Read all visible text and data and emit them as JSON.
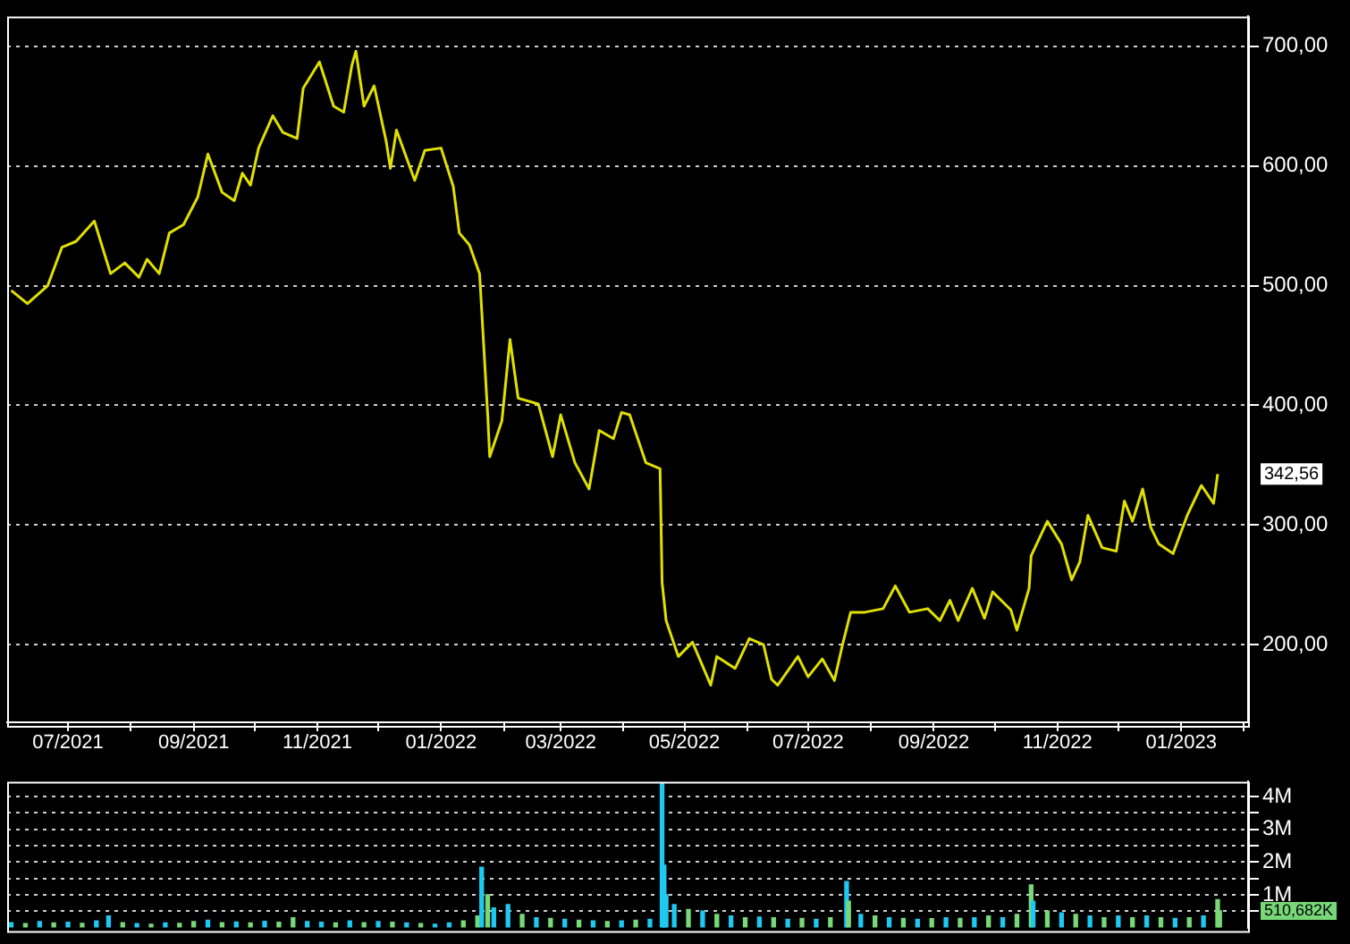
{
  "chart_data": [
    {
      "type": "line",
      "x": [
        "2021-06-03",
        "2021-06-11",
        "2021-06-21",
        "2021-06-28",
        "2021-07-05",
        "2021-07-14",
        "2021-07-22",
        "2021-07-29",
        "2021-08-05",
        "2021-08-09",
        "2021-08-15",
        "2021-08-20",
        "2021-08-27",
        "2021-09-03",
        "2021-09-08",
        "2021-09-15",
        "2021-09-21",
        "2021-09-25",
        "2021-09-29",
        "2021-10-03",
        "2021-10-10",
        "2021-10-15",
        "2021-10-22",
        "2021-10-25",
        "2021-11-02",
        "2021-11-09",
        "2021-11-14",
        "2021-11-18",
        "2021-11-20",
        "2021-11-24",
        "2021-11-29",
        "2021-12-05",
        "2021-12-07",
        "2021-12-10",
        "2021-12-19",
        "2021-12-24",
        "2022-01-01",
        "2022-01-07",
        "2022-01-10",
        "2022-01-15",
        "2022-01-20",
        "2022-01-24",
        "2022-01-25",
        "2022-01-31",
        "2022-02-04",
        "2022-02-08",
        "2022-02-18",
        "2022-02-25",
        "2022-03-01",
        "2022-03-08",
        "2022-03-15",
        "2022-03-20",
        "2022-03-27",
        "2022-03-31",
        "2022-04-04",
        "2022-04-12",
        "2022-04-19",
        "2022-04-20",
        "2022-04-22",
        "2022-04-28",
        "2022-05-05",
        "2022-05-14",
        "2022-05-17",
        "2022-05-26",
        "2022-06-02",
        "2022-06-09",
        "2022-06-13",
        "2022-06-16",
        "2022-06-26",
        "2022-07-01",
        "2022-07-08",
        "2022-07-14",
        "2022-07-18",
        "2022-07-22",
        "2022-07-29",
        "2022-08-07",
        "2022-08-13",
        "2022-08-20",
        "2022-08-29",
        "2022-09-04",
        "2022-09-09",
        "2022-09-13",
        "2022-09-20",
        "2022-09-26",
        "2022-09-30",
        "2022-10-09",
        "2022-10-12",
        "2022-10-18",
        "2022-10-19",
        "2022-10-27",
        "2022-11-03",
        "2022-11-08",
        "2022-11-12",
        "2022-11-16",
        "2022-11-23",
        "2022-11-30",
        "2022-12-04",
        "2022-12-08",
        "2022-12-13",
        "2022-12-17",
        "2022-12-21",
        "2022-12-28",
        "2023-01-04",
        "2023-01-11",
        "2023-01-17",
        "2023-01-19"
      ],
      "series": [
        {
          "color": "#e0e000",
          "values": [
            496,
            485,
            500,
            532,
            537,
            554,
            510,
            519,
            507,
            522,
            510,
            544,
            551,
            574,
            610,
            578,
            571,
            594,
            584,
            615,
            642,
            628,
            623,
            665,
            687,
            650,
            645,
            684,
            696,
            650,
            667,
            620,
            598,
            630,
            588,
            613,
            615,
            583,
            544,
            534,
            510,
            392,
            357,
            387,
            455,
            406,
            401,
            357,
            392,
            352,
            330,
            379,
            372,
            394,
            392,
            352,
            347,
            252,
            220,
            190,
            202,
            166,
            190,
            180,
            205,
            200,
            171,
            166,
            190,
            173,
            188,
            170,
            200,
            227,
            227,
            230,
            249,
            227,
            230,
            220,
            237,
            220,
            247,
            222,
            244,
            229,
            212,
            247,
            274,
            303,
            284,
            254,
            269,
            308,
            281,
            278,
            320,
            303,
            330,
            298,
            284,
            276,
            308,
            333,
            318,
            342.56
          ]
        }
      ],
      "xlim": [
        "2021-06-01",
        "2023-02-03"
      ],
      "xticks": [
        {
          "value": "2021-07-01",
          "label": "07/2021"
        },
        {
          "value": "2021-08-01",
          "label": null
        },
        {
          "value": "2021-09-01",
          "label": "09/2021"
        },
        {
          "value": "2021-10-01",
          "label": null
        },
        {
          "value": "2021-11-01",
          "label": "11/2021"
        },
        {
          "value": "2021-12-01",
          "label": null
        },
        {
          "value": "2022-01-01",
          "label": "01/2022"
        },
        {
          "value": "2022-02-01",
          "label": null
        },
        {
          "value": "2022-03-01",
          "label": "03/2022"
        },
        {
          "value": "2022-04-01",
          "label": null
        },
        {
          "value": "2022-05-01",
          "label": "05/2022"
        },
        {
          "value": "2022-06-01",
          "label": null
        },
        {
          "value": "2022-07-01",
          "label": "07/2022"
        },
        {
          "value": "2022-08-01",
          "label": null
        },
        {
          "value": "2022-09-01",
          "label": "09/2022"
        },
        {
          "value": "2022-10-01",
          "label": null
        },
        {
          "value": "2022-11-01",
          "label": "11/2022"
        },
        {
          "value": "2022-12-01",
          "label": null
        },
        {
          "value": "2023-01-01",
          "label": "01/2023"
        },
        {
          "value": "2023-02-01",
          "label": null
        }
      ],
      "ylim": [
        135,
        725
      ],
      "yticks": [
        {
          "value": 200,
          "label": "200,00"
        },
        {
          "value": 300,
          "label": "300,00"
        },
        {
          "value": 400,
          "label": "400,00"
        },
        {
          "value": 500,
          "label": "500,00"
        },
        {
          "value": 600,
          "label": "600,00"
        },
        {
          "value": 700,
          "label": "700,00"
        }
      ],
      "annotations": [
        "342,56"
      ],
      "grid": "y",
      "legend": false,
      "marker": "none",
      "line_style": "solid"
    },
    {
      "type": "bar",
      "x": [
        "2021-06-03",
        "2021-06-10",
        "2021-06-17",
        "2021-06-24",
        "2021-07-01",
        "2021-07-08",
        "2021-07-15",
        "2021-07-21",
        "2021-07-28",
        "2021-08-04",
        "2021-08-11",
        "2021-08-18",
        "2021-08-25",
        "2021-09-01",
        "2021-09-08",
        "2021-09-15",
        "2021-09-22",
        "2021-09-29",
        "2021-10-06",
        "2021-10-13",
        "2021-10-20",
        "2021-10-27",
        "2021-11-03",
        "2021-11-10",
        "2021-11-17",
        "2021-11-24",
        "2021-12-01",
        "2021-12-08",
        "2021-12-15",
        "2021-12-22",
        "2021-12-29",
        "2022-01-05",
        "2022-01-12",
        "2022-01-19",
        "2022-01-21",
        "2022-01-24",
        "2022-01-27",
        "2022-02-03",
        "2022-02-10",
        "2022-02-17",
        "2022-02-24",
        "2022-03-03",
        "2022-03-10",
        "2022-03-17",
        "2022-03-24",
        "2022-03-31",
        "2022-04-07",
        "2022-04-14",
        "2022-04-20",
        "2022-04-21",
        "2022-04-22",
        "2022-04-26",
        "2022-05-03",
        "2022-05-10",
        "2022-05-17",
        "2022-05-24",
        "2022-05-31",
        "2022-06-07",
        "2022-06-14",
        "2022-06-21",
        "2022-06-28",
        "2022-07-05",
        "2022-07-12",
        "2022-07-20",
        "2022-07-21",
        "2022-07-27",
        "2022-08-03",
        "2022-08-10",
        "2022-08-17",
        "2022-08-24",
        "2022-08-31",
        "2022-09-07",
        "2022-09-14",
        "2022-09-21",
        "2022-09-28",
        "2022-10-05",
        "2022-10-12",
        "2022-10-19",
        "2022-10-20",
        "2022-10-27",
        "2022-11-03",
        "2022-11-10",
        "2022-11-17",
        "2022-11-24",
        "2022-12-01",
        "2022-12-08",
        "2022-12-15",
        "2022-12-22",
        "2022-12-29",
        "2023-01-05",
        "2023-01-12",
        "2023-01-19",
        "2023-01-20"
      ],
      "values": [
        0.15,
        0.12,
        0.18,
        0.14,
        0.16,
        0.13,
        0.2,
        0.35,
        0.15,
        0.12,
        0.1,
        0.14,
        0.13,
        0.18,
        0.22,
        0.15,
        0.17,
        0.14,
        0.19,
        0.16,
        0.3,
        0.18,
        0.16,
        0.14,
        0.2,
        0.15,
        0.18,
        0.16,
        0.14,
        0.12,
        0.1,
        0.14,
        0.2,
        0.35,
        1.84,
        1.0,
        0.6,
        0.7,
        0.4,
        0.3,
        0.28,
        0.25,
        0.22,
        0.2,
        0.18,
        0.2,
        0.22,
        0.25,
        4.4,
        1.9,
        1.0,
        0.7,
        0.55,
        0.5,
        0.4,
        0.35,
        0.3,
        0.32,
        0.3,
        0.25,
        0.28,
        0.25,
        0.3,
        1.4,
        0.8,
        0.4,
        0.35,
        0.3,
        0.28,
        0.25,
        0.27,
        0.3,
        0.28,
        0.3,
        0.35,
        0.3,
        0.4,
        1.3,
        0.8,
        0.5,
        0.45,
        0.4,
        0.35,
        0.3,
        0.35,
        0.3,
        0.35,
        0.3,
        0.28,
        0.3,
        0.35,
        0.85,
        0.51
      ],
      "colors": [
        "#1ec8f0",
        "#78d878",
        "#1ec8f0",
        "#78d878",
        "#1ec8f0",
        "#78d878",
        "#1ec8f0",
        "#1ec8f0",
        "#78d878",
        "#1ec8f0",
        "#78d878",
        "#1ec8f0",
        "#78d878",
        "#78d878",
        "#1ec8f0",
        "#78d878",
        "#1ec8f0",
        "#78d878",
        "#1ec8f0",
        "#78d878",
        "#78d878",
        "#1ec8f0",
        "#1ec8f0",
        "#78d878",
        "#1ec8f0",
        "#78d878",
        "#1ec8f0",
        "#78d878",
        "#1ec8f0",
        "#78d878",
        "#1ec8f0",
        "#1ec8f0",
        "#78d878",
        "#78d878",
        "#1ec8f0",
        "#78d878",
        "#1ec8f0",
        "#1ec8f0",
        "#78d878",
        "#1ec8f0",
        "#78d878",
        "#1ec8f0",
        "#78d878",
        "#1ec8f0",
        "#78d878",
        "#1ec8f0",
        "#78d878",
        "#1ec8f0",
        "#1ec8f0",
        "#1ec8f0",
        "#1ec8f0",
        "#1ec8f0",
        "#78d878",
        "#1ec8f0",
        "#78d878",
        "#1ec8f0",
        "#78d878",
        "#1ec8f0",
        "#78d878",
        "#1ec8f0",
        "#78d878",
        "#1ec8f0",
        "#78d878",
        "#1ec8f0",
        "#78d878",
        "#1ec8f0",
        "#78d878",
        "#1ec8f0",
        "#78d878",
        "#1ec8f0",
        "#78d878",
        "#1ec8f0",
        "#78d878",
        "#1ec8f0",
        "#78d878",
        "#1ec8f0",
        "#78d878",
        "#78d878",
        "#1ec8f0",
        "#78d878",
        "#1ec8f0",
        "#78d878",
        "#1ec8f0",
        "#78d878",
        "#1ec8f0",
        "#78d878",
        "#1ec8f0",
        "#78d878",
        "#1ec8f0",
        "#78d878",
        "#1ec8f0",
        "#78d878",
        "#78d878"
      ],
      "xlim": [
        "2021-06-01",
        "2023-02-03"
      ],
      "ylim": [
        0,
        4.45
      ],
      "yticks": [
        {
          "value": 0.5,
          "label": null
        },
        {
          "value": 1,
          "label": "1M"
        },
        {
          "value": 1.5,
          "label": null
        },
        {
          "value": 2,
          "label": "2M"
        },
        {
          "value": 2.5,
          "label": null
        },
        {
          "value": 3,
          "label": "3M"
        },
        {
          "value": 3.5,
          "label": null
        },
        {
          "value": 4,
          "label": "4M"
        }
      ],
      "annotations": [
        "510,682K"
      ],
      "grid": "y",
      "legend": false,
      "tick_labels": "y"
    }
  ]
}
